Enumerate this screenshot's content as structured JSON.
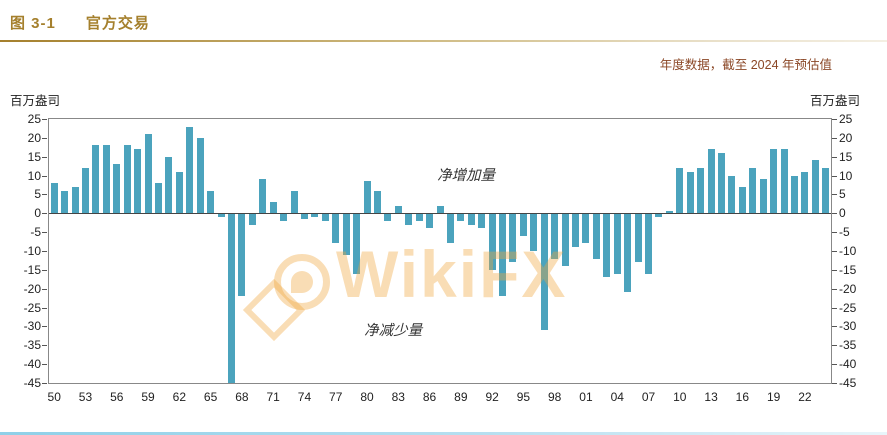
{
  "header": {
    "figure_label": "图 3-1",
    "title": "官方交易",
    "subtitle": "年度数据，截至 2024 年预估值"
  },
  "axes": {
    "left_unit": "百万盎司",
    "right_unit": "百万盎司"
  },
  "watermark": {
    "text": "WikiFX"
  },
  "colors": {
    "accent_gold": "#a5802d",
    "subtitle": "#8b4726",
    "bar": "#4ba3bd",
    "watermark": "rgba(240,166,60,0.38)",
    "bottom_line_start": "#8fd0e8",
    "bottom_line_end": "#e8f5fa"
  },
  "chart_data": {
    "type": "bar",
    "title": "官方交易",
    "subtitle": "年度数据，截至 2024 年预估值",
    "ylabel": "百万盎司",
    "ylim": [
      -45,
      25
    ],
    "ytick_labels": [
      25,
      20,
      15,
      10,
      5,
      0,
      -5,
      -10,
      -15,
      -20,
      -25,
      -30,
      -35,
      -40,
      -45
    ],
    "year_start": 1950,
    "year_end": 2024,
    "x_tick_interval": 3,
    "x_tick_labels": [
      "50",
      "53",
      "56",
      "59",
      "62",
      "65",
      "68",
      "71",
      "74",
      "77",
      "80",
      "83",
      "86",
      "89",
      "92",
      "95",
      "98",
      "01",
      "04",
      "07",
      "10",
      "13",
      "16",
      "19",
      "22"
    ],
    "values": [
      8,
      6,
      7,
      12,
      18,
      18,
      13,
      18,
      17,
      21,
      8,
      15,
      11,
      23,
      20,
      6,
      -1,
      -45,
      -22,
      -3,
      9,
      3,
      -2,
      6,
      -1.5,
      -1,
      -2,
      -8,
      -11,
      -16,
      8.5,
      6,
      -2,
      2,
      -3,
      -2,
      -4,
      2,
      -8,
      -2,
      -3,
      -4,
      -15,
      -22,
      -13,
      -6,
      -10,
      -31,
      -12,
      -14,
      -9,
      -8,
      -12,
      -17,
      -16,
      -21,
      -13,
      -16,
      -1,
      0.5,
      12,
      11,
      12,
      17,
      16,
      10,
      7,
      12,
      9,
      17,
      17,
      10,
      11,
      14,
      12
    ],
    "bar_color": "#4ba3bd",
    "grid": false,
    "legend": "none",
    "annotations": [
      {
        "text": "净增加量",
        "year": 1990,
        "value": 13
      },
      {
        "text": "净减少量",
        "year": 1983,
        "value": -28
      }
    ]
  }
}
